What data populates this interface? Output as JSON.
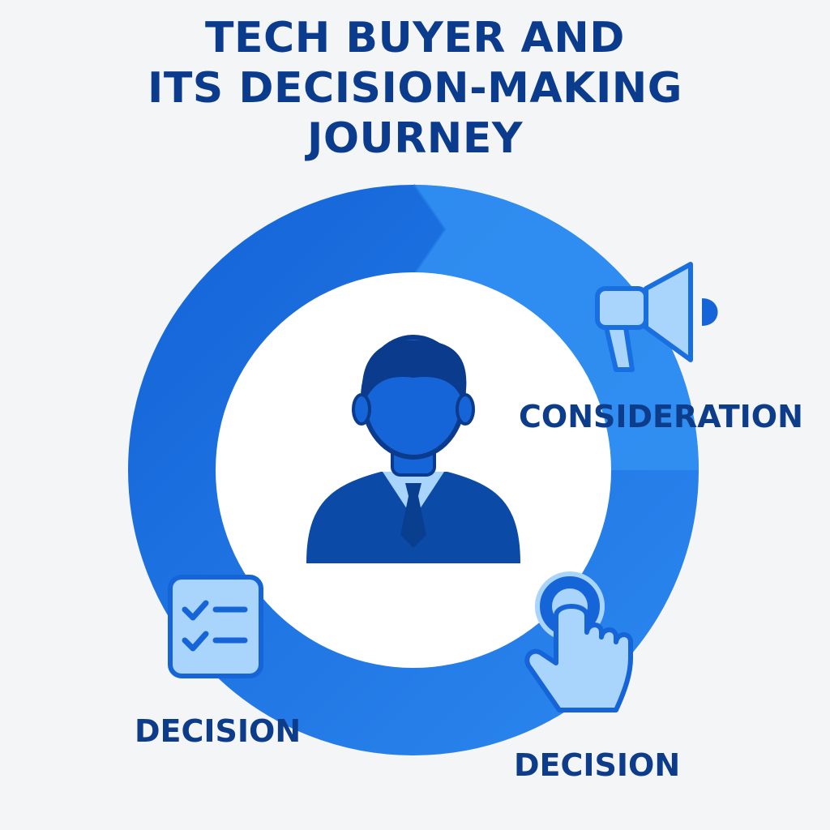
{
  "title": {
    "line1": "TECH BUYER AND",
    "line2": "ITS DECISION-MAKING",
    "line3": "JOURNEY"
  },
  "center": {
    "icon": "businessman-icon"
  },
  "stages": [
    {
      "label": "CONSIDERATION",
      "icon": "megaphone-icon"
    },
    {
      "label": "DECISION",
      "icon": "pointing-hand-icon"
    },
    {
      "label": "DECISION",
      "icon": "checklist-icon"
    }
  ],
  "colors": {
    "ring_dark": "#1565d8",
    "ring_light": "#3391f2",
    "title": "#0b3b8c",
    "icon_dark": "#0b4aa6",
    "icon_light": "#a9d4fb",
    "background": "#f4f5f7"
  }
}
